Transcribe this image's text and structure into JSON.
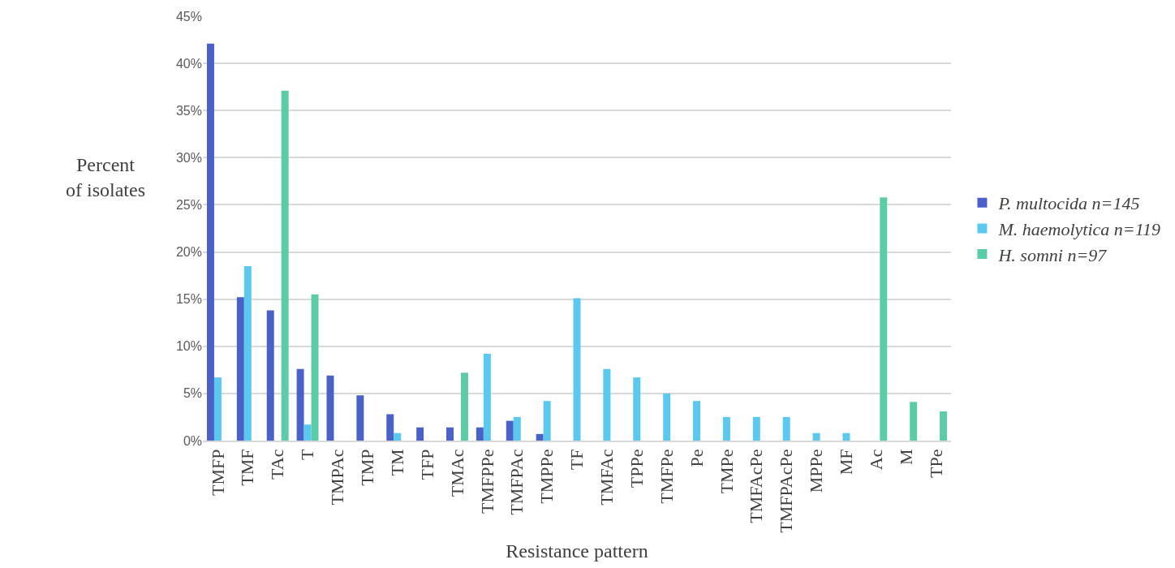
{
  "chart_data": {
    "type": "bar",
    "xlabel": "Resistance pattern",
    "ylabel": "Percent of isolates",
    "categories": [
      "TMFP",
      "TMF",
      "TAc",
      "T",
      "TMPAc",
      "TMP",
      "TM",
      "TFP",
      "TMAc",
      "TMFPPe",
      "TMFPAc",
      "TMPPe",
      "TF",
      "TMFAc",
      "TPPe",
      "TMFPe",
      "Pe",
      "TMPe",
      "TMFAcPe",
      "TMFPAcPe",
      "MPPe",
      "MF",
      "Ac",
      "M",
      "TPe"
    ],
    "series": [
      {
        "name": "P. multocida n=145",
        "color": "#4a62c8",
        "values": [
          42.1,
          15.2,
          13.8,
          7.6,
          6.9,
          4.8,
          2.8,
          1.4,
          1.4,
          1.4,
          2.1,
          0.7,
          0,
          0,
          0,
          0,
          0,
          0,
          0,
          0,
          0,
          0,
          0,
          0,
          0
        ]
      },
      {
        "name": "M. haemolytica n=119",
        "color": "#5bc8f0",
        "values": [
          6.7,
          18.5,
          0,
          1.7,
          0,
          0,
          0.8,
          0,
          0,
          9.2,
          2.5,
          4.2,
          15.1,
          7.6,
          6.7,
          5.0,
          4.2,
          2.5,
          2.5,
          2.5,
          0.8,
          0.8,
          0,
          0,
          0
        ]
      },
      {
        "name": "H. somni n=97",
        "color": "#5ccba8",
        "values": [
          0,
          0,
          37.1,
          15.5,
          0,
          0,
          0,
          0,
          7.2,
          0,
          0,
          0,
          0,
          0,
          0,
          0,
          0,
          0,
          0,
          0,
          0,
          0,
          25.8,
          4.1,
          3.1
        ]
      }
    ],
    "ylim": [
      0,
      45
    ],
    "yticks": [
      {
        "value": 0,
        "label": "0%"
      },
      {
        "value": 5,
        "label": "5%"
      },
      {
        "value": 10,
        "label": "10%"
      },
      {
        "value": 15,
        "label": "15%"
      },
      {
        "value": 20,
        "label": "20%"
      },
      {
        "value": 25,
        "label": "25%"
      },
      {
        "value": 30,
        "label": "30%"
      },
      {
        "value": 35,
        "label": "35%"
      },
      {
        "value": 40,
        "label": "40%"
      },
      {
        "value": 45,
        "label": "45%"
      }
    ],
    "grid": "y",
    "legend": "right"
  }
}
